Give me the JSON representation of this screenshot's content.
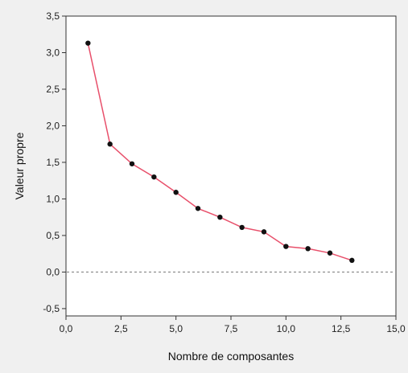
{
  "chart_data": {
    "type": "line",
    "xlabel": "Nombre de composantes",
    "ylabel": "Valeur propre",
    "xlim": [
      0,
      15
    ],
    "ylim": [
      -0.6,
      3.5
    ],
    "xticks": [
      0,
      2.5,
      5,
      7.5,
      10,
      12.5,
      15
    ],
    "xtick_labels": [
      "0,0",
      "2,5",
      "5,0",
      "7,5",
      "10,0",
      "12,5",
      "15,0"
    ],
    "yticks": [
      -0.5,
      0,
      0.5,
      1,
      1.5,
      2,
      2.5,
      3,
      3.5
    ],
    "ytick_labels": [
      "-0,5",
      "0,0",
      "0,5",
      "1,0",
      "1,5",
      "2,0",
      "2,5",
      "3,0",
      "3,5"
    ],
    "reference_line": {
      "y": 0,
      "style": "dashed"
    },
    "grid": false,
    "series": [
      {
        "x": [
          1,
          2,
          3,
          4,
          5,
          6,
          7,
          8,
          9,
          10,
          11,
          12,
          13
        ],
        "y": [
          3.13,
          1.75,
          1.48,
          1.3,
          1.09,
          0.87,
          0.75,
          0.61,
          0.55,
          0.35,
          0.32,
          0.26,
          0.16
        ],
        "line_color": "#e8506b",
        "marker_color": "#111111"
      }
    ]
  }
}
